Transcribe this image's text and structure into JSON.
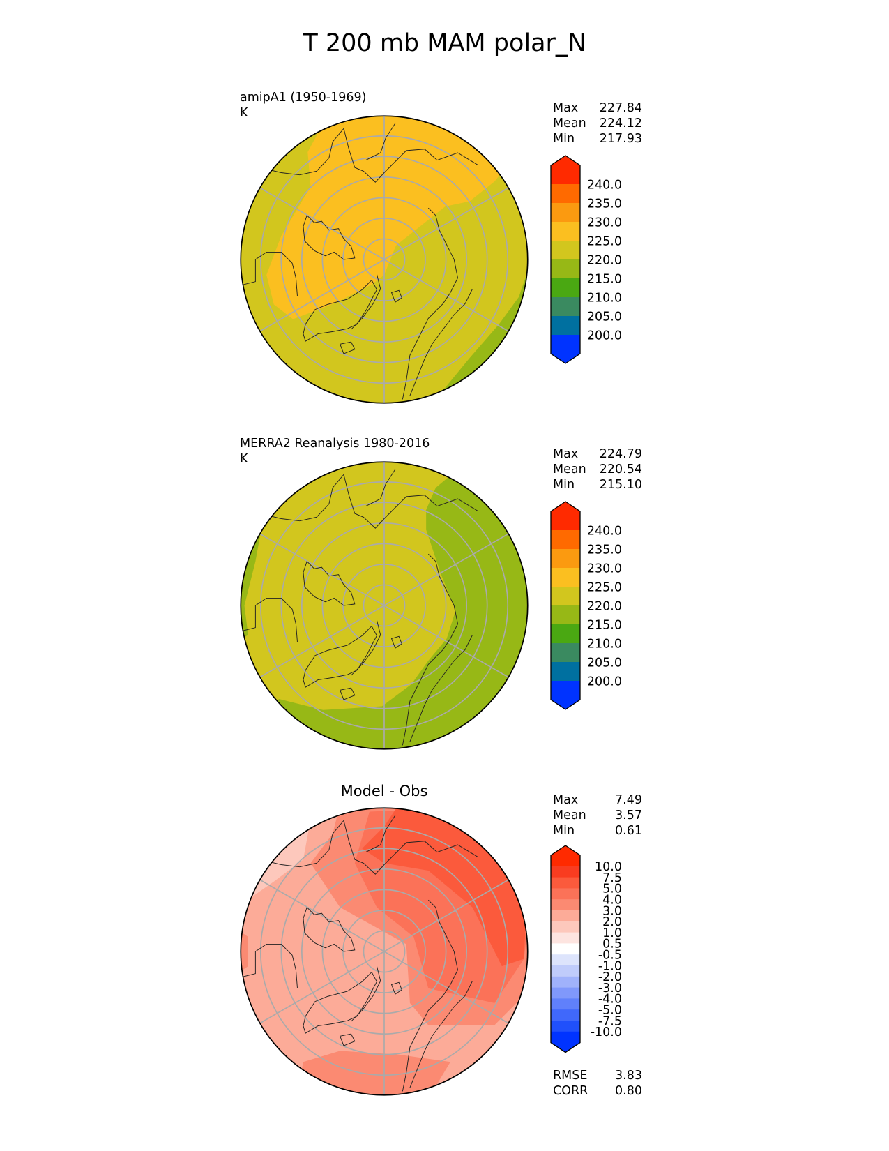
{
  "title": "T 200 mb MAM polar_N",
  "panels": [
    {
      "label_line1": "amipA1 (1950-1969)",
      "label_line2": "K",
      "stats": [
        {
          "k": "Max",
          "v": "227.84"
        },
        {
          "k": "Mean",
          "v": "224.12"
        },
        {
          "k": "Min",
          "v": "217.93"
        }
      ],
      "base_color": "#d2c61e",
      "colorbar": "abs"
    },
    {
      "label_line1": "MERRA2 Reanalysis 1980-2016",
      "label_line2": "K",
      "stats": [
        {
          "k": "Max",
          "v": "224.79"
        },
        {
          "k": "Mean",
          "v": "220.54"
        },
        {
          "k": "Min",
          "v": "215.10"
        }
      ],
      "base_color": "#d2c61e",
      "colorbar": "abs"
    },
    {
      "title": "Model - Obs",
      "stats": [
        {
          "k": "Max",
          "v": "7.49"
        },
        {
          "k": "Mean",
          "v": "3.57"
        },
        {
          "k": "Min",
          "v": "0.61"
        }
      ],
      "extra_stats": [
        {
          "k": "RMSE",
          "v": "3.83"
        },
        {
          "k": "CORR",
          "v": "0.80"
        }
      ],
      "base_color": "#fcab98",
      "colorbar": "diff"
    }
  ],
  "colorbars": {
    "abs": {
      "labels": [
        "240.0",
        "235.0",
        "230.0",
        "225.0",
        "220.0",
        "215.0",
        "210.0",
        "205.0",
        "200.0"
      ],
      "colors": [
        "#ff2a00",
        "#ff6a00",
        "#fb9a10",
        "#fbbf20",
        "#d2c61e",
        "#97b816",
        "#4aa812",
        "#3a8a60",
        "#0070a0",
        "#0033ff"
      ]
    },
    "diff": {
      "labels": [
        "10.0",
        "7.5",
        "5.0",
        "4.0",
        "3.0",
        "2.0",
        "1.0",
        "0.5",
        "-0.5",
        "-1.0",
        "-2.0",
        "-3.0",
        "-4.0",
        "-5.0",
        "-7.5",
        "-10.0"
      ],
      "colors": [
        "#ff2a00",
        "#f93c20",
        "#fb5a3c",
        "#fb7258",
        "#fb8a72",
        "#fcab98",
        "#fdc8bc",
        "#fde4e0",
        "#ffffff",
        "#dde4fc",
        "#c0ccfb",
        "#a0b2fb",
        "#8098fb",
        "#6080fb",
        "#4068fb",
        "#2050fb",
        "#0033ff"
      ]
    }
  }
}
